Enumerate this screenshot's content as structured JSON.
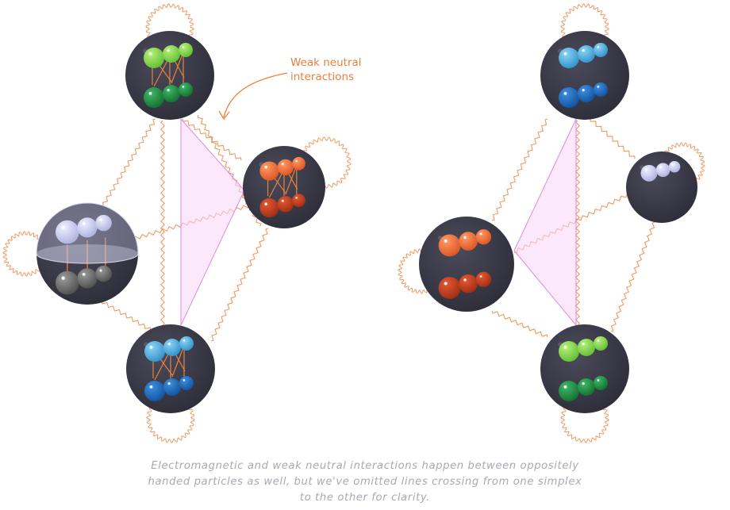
{
  "annotation": {
    "line1": "Weak neutral",
    "line2": "interactions",
    "color": "#e8823c"
  },
  "caption": {
    "line1": "Electromagnetic and weak neutral interactions happen between oppositely",
    "line2": "handed particles as well, but we've omitted lines crossing from one simplex",
    "line3": "to the other for clarity."
  },
  "colors": {
    "node_fill": "#3a3a48",
    "line": "#e8823c",
    "simplex_fill": "#f7d6f7",
    "simplex_edge": "#e08ae0",
    "green_light": "#7ed64a",
    "green_dark": "#1b8a3a",
    "blue_light": "#3fa9dd",
    "blue_dark": "#1565b8",
    "orange_light": "#f06a33",
    "orange_dark": "#c23a1c",
    "lavender": "#c9cbf2",
    "gray": "#6a6a6a"
  },
  "nodes": {
    "left_simplex": [
      "green-pair-node",
      "orange-pair-node",
      "lavender-gray-node",
      "blue-pair-node"
    ],
    "right_simplex": [
      "blue-pair-node",
      "lavender-node",
      "orange-pair-node",
      "green-pair-node"
    ]
  }
}
